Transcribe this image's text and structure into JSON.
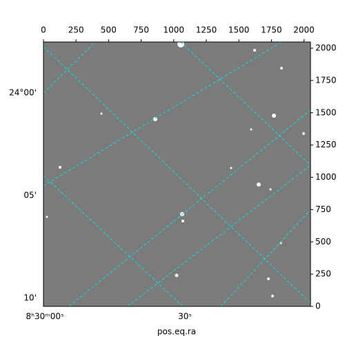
{
  "chart_data": {
    "type": "image",
    "xlabel": "pos.eq.ra",
    "xlim": [
      0,
      2050
    ],
    "xticks": [
      0,
      250,
      500,
      750,
      1000,
      1250,
      1500,
      1750,
      2000
    ],
    "ylim": [
      0,
      2048
    ],
    "yticks": [
      0,
      250,
      500,
      750,
      1000,
      1250,
      1500,
      1750,
      2000
    ],
    "dec_tick_labels": [
      "24°00'",
      "05'",
      "10'"
    ],
    "ra_tick_labels": [
      "8ʰ30ᵐ00ˢ",
      "30ˢ"
    ],
    "grid_color": "#00e5e5"
  }
}
